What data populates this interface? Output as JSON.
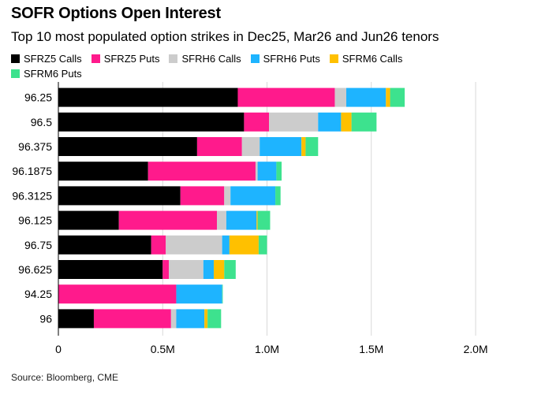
{
  "chart_data": {
    "type": "bar",
    "orientation": "horizontal",
    "stacked": true,
    "title": "SOFR Options Open Interest",
    "subtitle": "Top 10 most populated option strikes in Dec25, Mar26 and Jun26 tenors",
    "source": "Source: Bloomberg, CME",
    "categories": [
      "96.25",
      "96.5",
      "96.375",
      "96.1875",
      "96.3125",
      "96.125",
      "96.75",
      "96.625",
      "94.25",
      "96"
    ],
    "series": [
      {
        "name": "SFRZ5 Calls",
        "color": "#000000",
        "values": [
          860000,
          890000,
          665000,
          430000,
          585000,
          290000,
          445000,
          500000,
          0,
          170000
        ]
      },
      {
        "name": "SFRZ5 Puts",
        "color": "#ff1a8c",
        "values": [
          465000,
          120000,
          215000,
          515000,
          210000,
          470000,
          70000,
          30000,
          565000,
          370000
        ]
      },
      {
        "name": "SFRH6 Calls",
        "color": "#cccccc",
        "values": [
          55000,
          235000,
          85000,
          10000,
          30000,
          45000,
          270000,
          165000,
          0,
          25000
        ]
      },
      {
        "name": "SFRH6 Puts",
        "color": "#1eb4ff",
        "values": [
          190000,
          110000,
          200000,
          90000,
          215000,
          145000,
          35000,
          50000,
          220000,
          135000
        ]
      },
      {
        "name": "SFRM6 Calls",
        "color": "#ffc000",
        "values": [
          20000,
          50000,
          20000,
          0,
          0,
          5000,
          140000,
          50000,
          0,
          15000
        ]
      },
      {
        "name": "SFRM6 Puts",
        "color": "#3de28e",
        "values": [
          70000,
          120000,
          60000,
          25000,
          25000,
          60000,
          40000,
          55000,
          3000,
          65000
        ]
      }
    ],
    "xlim": [
      0,
      2000000
    ],
    "xticks": [
      0,
      500000,
      1000000,
      1500000,
      2000000
    ],
    "xtick_labels": [
      "0",
      "0.5M",
      "1.0M",
      "1.5M",
      "2.0M"
    ],
    "grid": true,
    "legend_position": "top"
  }
}
